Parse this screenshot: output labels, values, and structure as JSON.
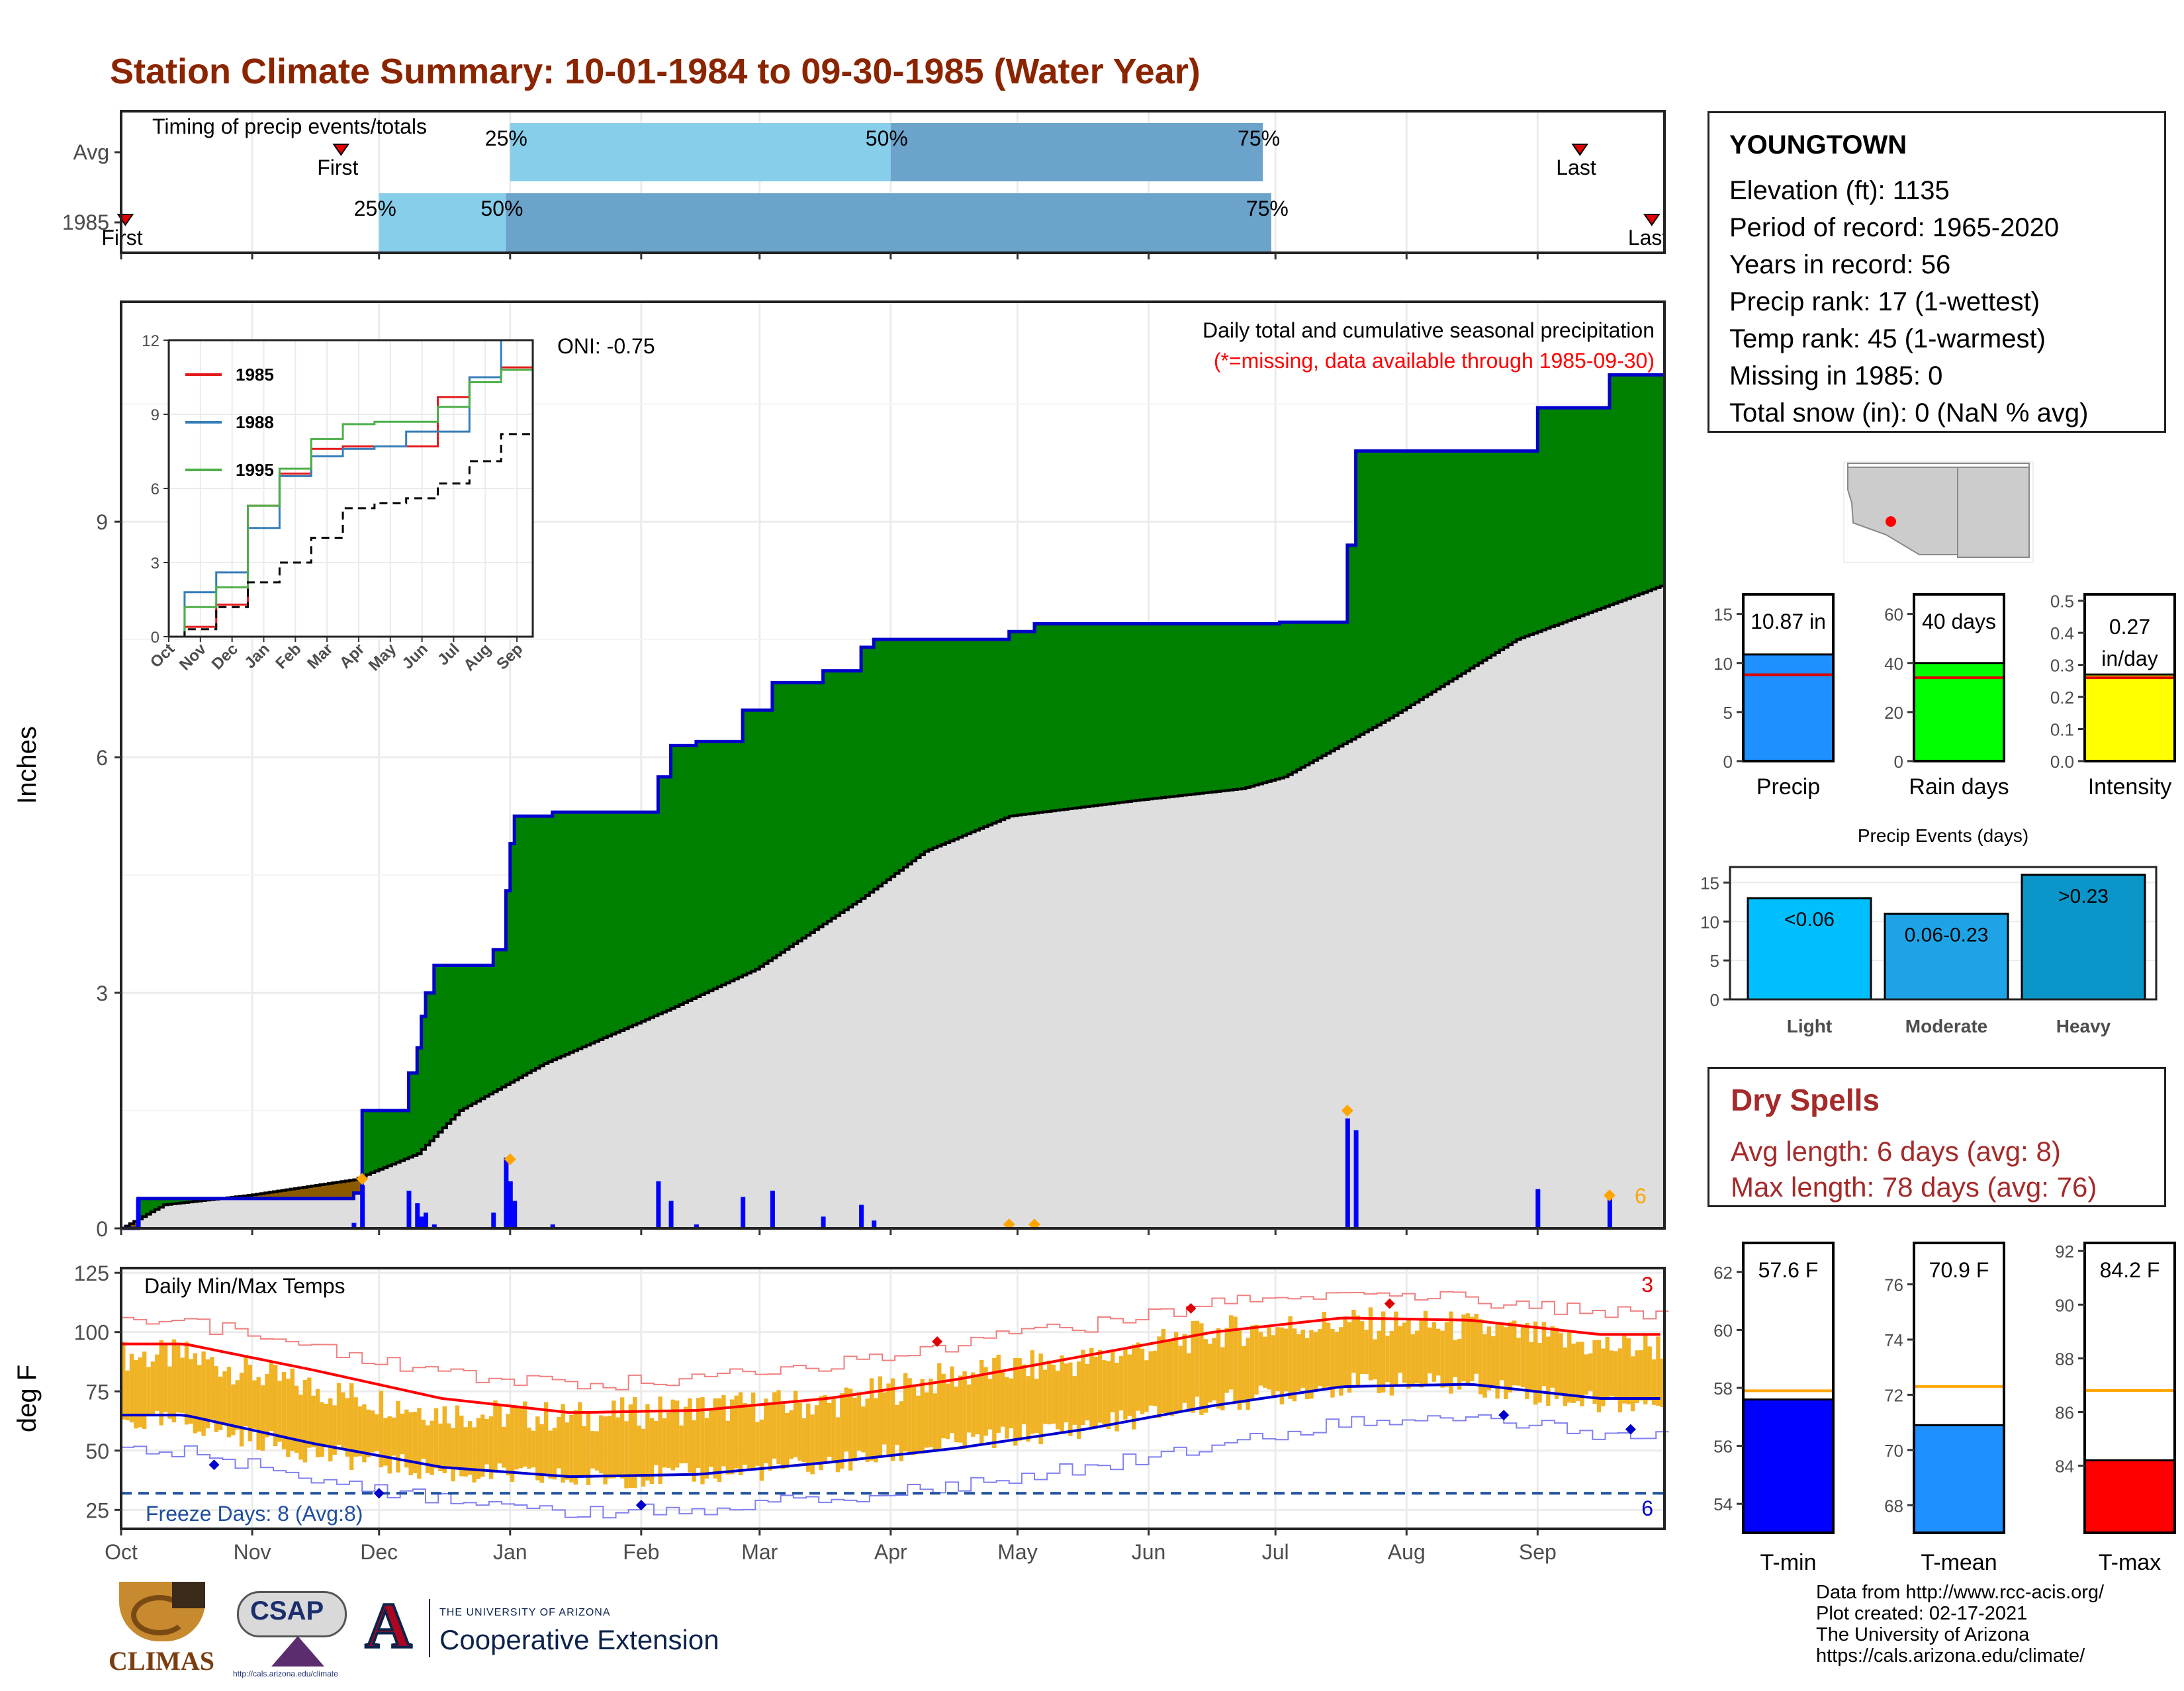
{
  "title": "Station Climate Summary: 10-01-1984 to 09-30-1985 (Water Year)",
  "timing": {
    "label": "Timing of precip events/totals",
    "rows": [
      {
        "name": "Avg",
        "first": "First",
        "last": "Last",
        "p25": "25%",
        "p50": "50%",
        "p75": "75%"
      },
      {
        "name": "1985",
        "first": "First",
        "last": "Last",
        "p25": "25%",
        "p50": "50%",
        "p75": "75%"
      }
    ]
  },
  "main_precip": {
    "ylabel": "Inches",
    "subtitle": "Daily total and cumulative seasonal precipitation",
    "missing_note": "(*=missing, data available through 1985-09-30)",
    "oni": "ONI: -0.75",
    "yticks": [
      "0",
      "3",
      "6",
      "9"
    ],
    "corner_count": "6"
  },
  "inset": {
    "legend": [
      "1985",
      "1988",
      "1995"
    ],
    "yticks": [
      "0",
      "3",
      "6",
      "9",
      "12"
    ],
    "xticks": [
      "Oct",
      "Nov",
      "Dec",
      "Jan",
      "Feb",
      "Mar",
      "Apr",
      "May",
      "Jun",
      "Jul",
      "Aug",
      "Sep"
    ]
  },
  "months": [
    "Oct",
    "Nov",
    "Dec",
    "Jan",
    "Feb",
    "Mar",
    "Apr",
    "May",
    "Jun",
    "Jul",
    "Aug",
    "Sep"
  ],
  "temps": {
    "label": "Daily Min/Max Temps",
    "ylabel": "deg F",
    "yticks": [
      "25",
      "50",
      "75",
      "100",
      "125"
    ],
    "freeze": "Freeze Days: 8 (Avg:8)",
    "max_count": "3",
    "min_count": "6"
  },
  "station": {
    "name": "YOUNGTOWN",
    "lines": [
      "Elevation (ft): 1135",
      "Period of record: 1965-2020",
      "Years in record: 56",
      "Precip rank: 17 (1-wettest)",
      "Temp rank: 45 (1-warmest)",
      "Missing in 1985: 0",
      "Total snow (in): 0 (NaN % avg)"
    ]
  },
  "small_bars": [
    {
      "label": "Precip",
      "value_text": "10.87 in",
      "value": 10.87,
      "avg": 8.8,
      "max": 17,
      "ticks": [
        "0",
        "5",
        "10",
        "15"
      ],
      "tickvals": [
        0,
        5,
        10,
        15
      ],
      "color": "#1e90ff"
    },
    {
      "label": "Rain days",
      "value_text": "40 days",
      "value": 40,
      "avg": 34,
      "max": 68,
      "ticks": [
        "0",
        "20",
        "40",
        "60"
      ],
      "tickvals": [
        0,
        20,
        40,
        60
      ],
      "color": "#00ff00"
    },
    {
      "label": "Intensity",
      "value_text": "0.27 in/day",
      "value_line1": "0.27",
      "value_line2": "in/day",
      "value": 0.27,
      "avg": 0.26,
      "max": 0.52,
      "ticks": [
        "0.0",
        "0.1",
        "0.2",
        "0.3",
        "0.4",
        "0.5"
      ],
      "tickvals": [
        0,
        0.1,
        0.2,
        0.3,
        0.4,
        0.5
      ],
      "color": "#ffff00"
    }
  ],
  "events": {
    "title": "Precip Events (days)",
    "categories": [
      "Light",
      "Moderate",
      "Heavy"
    ],
    "labels": [
      "<0.06",
      "0.06-0.23",
      ">0.23"
    ],
    "values": [
      13,
      11,
      16
    ],
    "ticks": [
      "0",
      "5",
      "10",
      "15"
    ],
    "colors": [
      "#00bfff",
      "#1ea4e6",
      "#0a96c8"
    ]
  },
  "dry_spells": {
    "title": "Dry Spells",
    "avg": "Avg length: 6 days (avg: 8)",
    "max": "Max length: 78 days (avg: 76)"
  },
  "temp_bars": [
    {
      "label": "T-min",
      "value_text": "57.6 F",
      "value": 57.6,
      "avg": 57.9,
      "min": 53,
      "max": 63,
      "ticks": [
        "54",
        "56",
        "58",
        "60",
        "62"
      ],
      "tickvals": [
        54,
        56,
        58,
        60,
        62
      ],
      "color": "#0000ff"
    },
    {
      "label": "T-mean",
      "value_text": "70.9 F",
      "value": 70.9,
      "avg": 72.3,
      "min": 67,
      "max": 77.5,
      "ticks": [
        "68",
        "70",
        "72",
        "74",
        "76"
      ],
      "tickvals": [
        68,
        70,
        72,
        74,
        76
      ],
      "color": "#1e90ff"
    },
    {
      "label": "T-max",
      "value_text": "84.2 F",
      "value": 84.2,
      "avg": 86.8,
      "min": 81.5,
      "max": 92.3,
      "ticks": [
        "84",
        "86",
        "88",
        "90",
        "92"
      ],
      "tickvals": [
        84,
        86,
        88,
        90,
        92
      ],
      "color": "#ff0000"
    }
  ],
  "credits": [
    "Data from http://www.rcc-acis.org/",
    "Plot created: 02-17-2021",
    "The University of Arizona",
    "https://cals.arizona.edu/climate/"
  ],
  "logos": {
    "climas": "CLIMAS",
    "csap": "CSAP",
    "csap_url": "http://cals.arizona.edu/climate",
    "ua_letter": "A",
    "ua_small": "THE UNIVERSITY OF ARIZONA",
    "ua_big": "Cooperative Extension"
  },
  "chart_data": [
    {
      "type": "bar",
      "title": "Timing of precip events/totals",
      "categories": [
        "Avg",
        "1985"
      ],
      "series": [
        {
          "name": "25%",
          "values": [
            "Jan 01",
            "Dec 01"
          ]
        },
        {
          "name": "50%",
          "values": [
            "Apr 01",
            "Dec 31"
          ]
        },
        {
          "name": "75%",
          "values": [
            "Jun 28",
            "Jun 30"
          ]
        }
      ]
    },
    {
      "type": "area",
      "title": "Daily total and cumulative seasonal precipitation",
      "ylabel": "Inches",
      "ylim": [
        0,
        11.8
      ],
      "x": [
        "Oct 01",
        "Oct 05",
        "Nov 20",
        "Nov 26",
        "Dec 10",
        "Dec 20",
        "Dec 24",
        "Jan 01",
        "Jan 26",
        "Feb 10",
        "Feb 25",
        "Mar 12",
        "Apr 01",
        "Apr 25",
        "Jul 15",
        "Aug 18",
        "Sep 17",
        "Sep 30"
      ],
      "series": [
        {
          "name": "1985 cumulative",
          "values": [
            0,
            0.38,
            0.45,
            1.5,
            3.2,
            5.25,
            5.25,
            5.3,
            6.2,
            6.6,
            7.1,
            7.5,
            7.6,
            7.7,
            9.9,
            10.5,
            10.87,
            10.87
          ]
        },
        {
          "name": "Average cumulative",
          "values": [
            0,
            0.15,
            0.5,
            0.9,
            1.5,
            2.0,
            2.3,
            2.6,
            3.1,
            3.7,
            4.4,
            5.0,
            5.3,
            5.5,
            6.1,
            7.0,
            8.0,
            8.2
          ]
        }
      ],
      "daily_max_markers": [
        {
          "x": "Nov 26",
          "y": 0.63
        },
        {
          "x": "Dec 28",
          "y": 0.88
        },
        {
          "x": "Jul 15",
          "y": 1.5
        },
        {
          "x": "Sep 17",
          "y": 0.4
        }
      ]
    },
    {
      "type": "line",
      "title": "",
      "xlim": [
        "Oct",
        "Sep"
      ],
      "ylim": [
        0,
        12
      ],
      "series": [
        {
          "name": "1985",
          "color": "#e41a1c",
          "values": [
            0,
            0.4,
            1.3,
            5.3,
            6.6,
            7.6,
            7.7,
            7.7,
            7.7,
            9.7,
            10.5,
            10.9
          ]
        },
        {
          "name": "1988",
          "color": "#377eb8",
          "values": [
            0,
            1.8,
            2.6,
            4.4,
            6.5,
            7.3,
            7.6,
            7.7,
            8.3,
            8.3,
            10.5,
            12.5
          ]
        },
        {
          "name": "1995",
          "color": "#4daf4a",
          "values": [
            0,
            1.2,
            2.0,
            5.3,
            6.8,
            8.0,
            8.6,
            8.7,
            8.7,
            9.3,
            10.3,
            10.8
          ]
        },
        {
          "name": "Average",
          "color": "#000000",
          "values": [
            0,
            0.3,
            1.2,
            2.2,
            3.0,
            4.0,
            5.2,
            5.4,
            5.6,
            6.2,
            7.1,
            8.2
          ]
        }
      ]
    },
    {
      "type": "line",
      "title": "Daily Min/Max Temps",
      "ylabel": "deg F",
      "ylim": [
        17,
        127
      ],
      "x": [
        "Oct",
        "Nov",
        "Dec",
        "Jan",
        "Feb",
        "Mar",
        "Apr",
        "May",
        "Jun",
        "Jul",
        "Aug",
        "Sep"
      ],
      "series": [
        {
          "name": "Avg max",
          "values": [
            95,
            84,
            72,
            66,
            67,
            72,
            80,
            90,
            100,
            106,
            105,
            99
          ]
        },
        {
          "name": "Avg min",
          "values": [
            65,
            53,
            43,
            39,
            40,
            45,
            51,
            59,
            69,
            77,
            78,
            72
          ]
        },
        {
          "name": "Record max",
          "values": [
            104,
            94,
            82,
            78,
            80,
            86,
            95,
            103,
            112,
            116,
            114,
            108
          ]
        },
        {
          "name": "Record min",
          "values": [
            49,
            38,
            29,
            24,
            25,
            30,
            35,
            43,
            52,
            62,
            64,
            57
          ]
        },
        {
          "name": "1985 daily max",
          "values": [
            90,
            76,
            66,
            64,
            68,
            70,
            82,
            88,
            100,
            104,
            102,
            94
          ]
        },
        {
          "name": "1985 daily min",
          "values": [
            62,
            49,
            41,
            38,
            40,
            44,
            53,
            60,
            70,
            78,
            78,
            70
          ]
        }
      ],
      "freeze_line": 32
    },
    {
      "type": "bar",
      "title": "Precip Events (days)",
      "categories": [
        "Light",
        "Moderate",
        "Heavy"
      ],
      "values": [
        13,
        11,
        16
      ]
    },
    {
      "type": "bar",
      "categories": [
        "Precip",
        "Rain days",
        "Intensity"
      ],
      "values": [
        10.87,
        40,
        0.27
      ]
    },
    {
      "type": "bar",
      "categories": [
        "T-min",
        "T-mean",
        "T-max"
      ],
      "values": [
        57.6,
        70.9,
        84.2
      ]
    }
  ]
}
